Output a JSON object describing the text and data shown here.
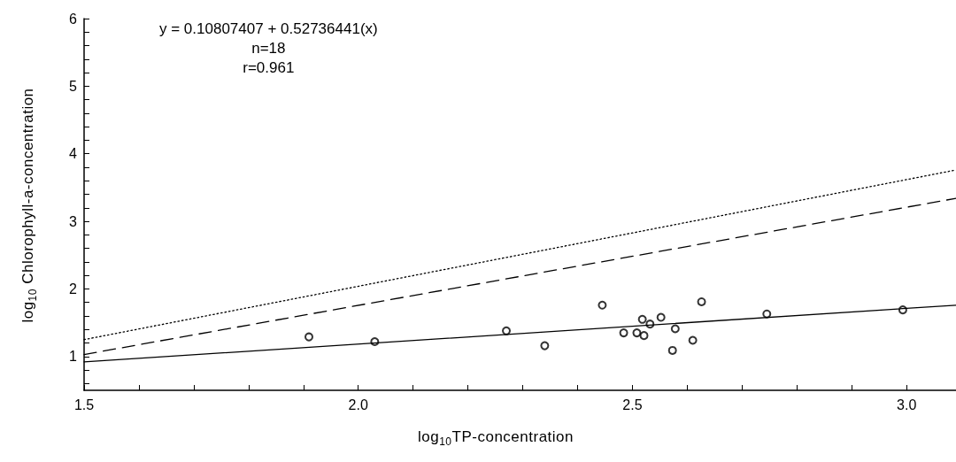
{
  "chart_data": {
    "type": "scatter",
    "xlabel": "log$_{10}$TP-concentration",
    "ylabel": "log$_{10}$ Chlorophyll-a-concentration",
    "annotations": [
      "y = 0.10807407 + 0.52736441(x)",
      "n=18",
      "r=0.961"
    ],
    "xlim": [
      1.5,
      3.09
    ],
    "ylim": [
      0.5,
      6
    ],
    "xticks": [
      "1.5",
      {
        "value": 1.6,
        "label": null
      },
      {
        "value": 1.7,
        "label": null
      },
      {
        "value": 1.8,
        "label": null
      },
      {
        "value": 1.9,
        "label": null
      },
      {
        "value": 2.0,
        "label": "2.0"
      },
      {
        "value": 2.1,
        "label": null
      },
      {
        "value": 2.2,
        "label": null
      },
      {
        "value": 2.3,
        "label": null
      },
      {
        "value": 2.4,
        "label": null
      },
      {
        "value": 2.5,
        "label": "2.5"
      },
      {
        "value": 2.6,
        "label": null
      },
      {
        "value": 2.7,
        "label": null
      },
      {
        "value": 2.8,
        "label": null
      },
      {
        "value": 2.9,
        "label": null
      },
      {
        "value": 3.0,
        "label": "3.0"
      }
    ],
    "yticks": [
      {
        "value": 0.6,
        "label": null
      },
      {
        "value": 0.8,
        "label": null
      },
      1,
      {
        "value": 1.2,
        "label": null
      },
      {
        "value": 1.4,
        "label": null
      },
      {
        "value": 1.6,
        "label": null
      },
      {
        "value": 1.8,
        "label": null
      },
      2,
      {
        "value": 2.2,
        "label": null
      },
      {
        "value": 2.4,
        "label": null
      },
      {
        "value": 2.6,
        "label": null
      },
      {
        "value": 2.8,
        "label": null
      },
      3,
      {
        "value": 3.2,
        "label": null
      },
      {
        "value": 3.4,
        "label": null
      },
      {
        "value": 3.6,
        "label": null
      },
      {
        "value": 3.8,
        "label": null
      },
      4,
      {
        "value": 4.2,
        "label": null
      },
      {
        "value": 4.4,
        "label": null
      },
      {
        "value": 4.6,
        "label": null
      },
      {
        "value": 4.8,
        "label": null
      },
      5,
      {
        "value": 5.2,
        "label": null
      },
      {
        "value": 5.4,
        "label": null
      },
      {
        "value": 5.6,
        "label": null
      },
      {
        "value": 5.8,
        "label": null
      },
      6
    ],
    "grid": false,
    "series": [
      {
        "color": "#000000",
        "marker": "circle",
        "x": [
          1.91,
          2.03,
          2.27,
          2.34,
          2.445,
          2.484,
          2.508,
          2.521,
          2.518,
          2.532,
          2.552,
          2.578,
          2.573,
          2.61,
          2.626,
          2.745,
          2.993
        ],
        "values": [
          1.29,
          1.22,
          1.38,
          1.16,
          1.76,
          1.35,
          1.35,
          1.31,
          1.55,
          1.48,
          1.58,
          1.41,
          1.09,
          1.24,
          1.81,
          1.63,
          1.69
        ]
      },
      {
        "type": "line",
        "color": "#000000",
        "marker": "none",
        "line_style": "solid",
        "x": [
          1.5,
          3.09
        ],
        "values": [
          0.92,
          1.76
        ]
      },
      {
        "type": "line",
        "color": "#000000",
        "marker": "none",
        "line_style": "dashed",
        "x": [
          1.5,
          3.09
        ],
        "values": [
          1.03,
          3.34
        ]
      },
      {
        "type": "line",
        "color": "#000000",
        "marker": "none",
        "line_style": "dotted",
        "x": [
          1.5,
          3.09
        ],
        "values": [
          1.25,
          3.76
        ]
      }
    ]
  }
}
